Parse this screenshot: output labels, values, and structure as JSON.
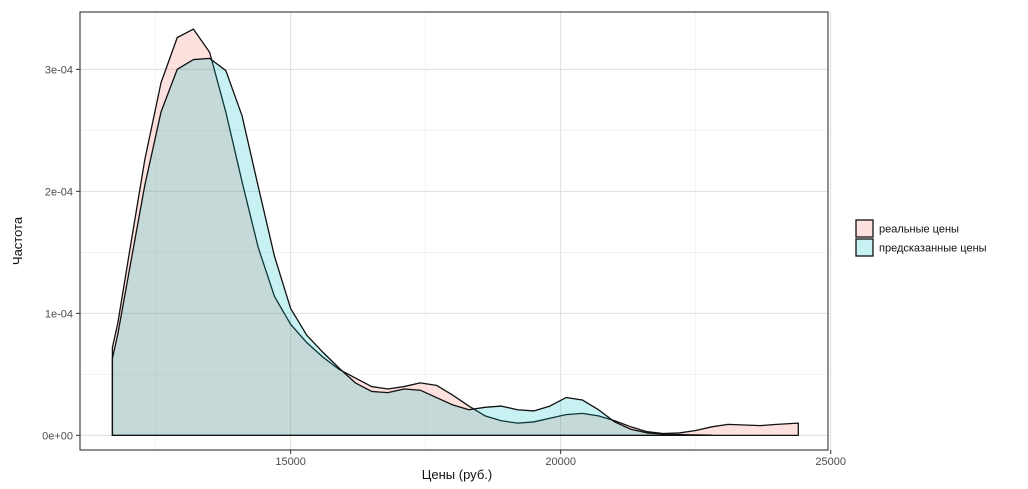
{
  "chart_data": {
    "type": "area",
    "xlabel": "Цены (руб.)",
    "ylabel": "Частота",
    "xlim": [
      11100,
      24950
    ],
    "ylim": [
      -1.2e-05,
      0.000347
    ],
    "x_ticks": [
      15000,
      20000,
      25000
    ],
    "x_tick_labels": [
      "15000",
      "20000",
      "25000"
    ],
    "y_ticks": [
      0,
      0.0001,
      0.0002,
      0.0003
    ],
    "y_tick_labels": [
      "0e+00",
      "1e-04",
      "2e-04",
      "3e-04"
    ],
    "grid": true,
    "legend_position": "right",
    "series": [
      {
        "name": "реальные цены",
        "color": "#F8766D",
        "x": [
          11700,
          11800,
          12000,
          12300,
          12600,
          12900,
          13200,
          13500,
          13800,
          14100,
          14400,
          14700,
          15000,
          15300,
          15600,
          15900,
          16200,
          16500,
          16800,
          17100,
          17400,
          17700,
          18000,
          18300,
          18600,
          18900,
          19200,
          19500,
          19800,
          20100,
          20400,
          20700,
          21000,
          21300,
          21600,
          21900,
          22200,
          22500,
          22800,
          23100,
          23400,
          23700,
          24000,
          24400
        ],
        "values": [
          7.2e-05,
          9.2e-05,
          0.000146,
          0.000226,
          0.000289,
          0.000326,
          0.000333,
          0.000314,
          0.000265,
          0.000208,
          0.000154,
          0.000114,
          9.1e-05,
          7.6e-05,
          6.4e-05,
          5.4e-05,
          4.7e-05,
          4e-05,
          3.8e-05,
          4e-05,
          4.3e-05,
          4.1e-05,
          3.3e-05,
          2.4e-05,
          1.6e-05,
          1.2e-05,
          1e-05,
          1.1e-05,
          1.4e-05,
          1.7e-05,
          1.8e-05,
          1.6e-05,
          1.2e-05,
          7e-06,
          3e-06,
          1.5e-06,
          2e-06,
          4e-06,
          7e-06,
          9e-06,
          8.5e-06,
          8e-06,
          9e-06,
          1e-05
        ]
      },
      {
        "name": "предсказанные цены",
        "color": "#00BFC4",
        "x": [
          11700,
          11800,
          12000,
          12300,
          12600,
          12900,
          13200,
          13500,
          13800,
          14100,
          14400,
          14700,
          15000,
          15300,
          15600,
          15900,
          16200,
          16500,
          16800,
          17100,
          17400,
          17700,
          18000,
          18300,
          18600,
          18900,
          19200,
          19500,
          19800,
          20100,
          20400,
          20700,
          21000,
          21300,
          21600,
          21900,
          22200,
          22500,
          22800
        ],
        "values": [
          6.3e-05,
          8.3e-05,
          0.000132,
          0.000205,
          0.000265,
          0.0003,
          0.000308,
          0.000309,
          0.000299,
          0.000262,
          0.000204,
          0.000147,
          0.000104,
          8.2e-05,
          6.8e-05,
          5.5e-05,
          4.3e-05,
          3.6e-05,
          3.5e-05,
          3.8e-05,
          3.7e-05,
          3.1e-05,
          2.5e-05,
          2.1e-05,
          2.3e-05,
          2.4e-05,
          2.1e-05,
          2e-05,
          2.4e-05,
          3.1e-05,
          2.9e-05,
          2.1e-05,
          1.1e-05,
          5e-06,
          2e-06,
          1e-06,
          6e-07,
          4e-07,
          2e-07
        ]
      }
    ]
  }
}
